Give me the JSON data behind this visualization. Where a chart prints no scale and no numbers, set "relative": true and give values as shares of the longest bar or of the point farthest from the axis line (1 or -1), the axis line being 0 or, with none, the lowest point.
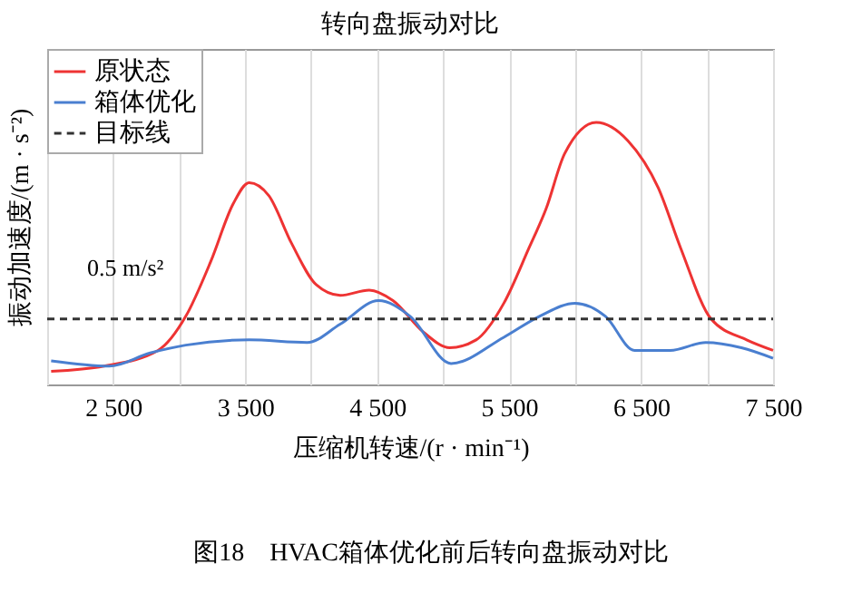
{
  "chart_data": {
    "type": "line",
    "title": "转向盘振动对比",
    "xlabel": "压缩机转速/(r · min⁻¹)",
    "ylabel": "振动加速度/(m · s⁻²)",
    "relative": true,
    "xlim": [
      2000,
      7500
    ],
    "xticks": [
      {
        "value": 2000,
        "label": null
      },
      {
        "value": 2500,
        "label": "2 500"
      },
      {
        "value": 3000,
        "label": null
      },
      {
        "value": 3500,
        "label": "3 500"
      },
      {
        "value": 4000,
        "label": null
      },
      {
        "value": 4500,
        "label": "4 500"
      },
      {
        "value": 5000,
        "label": null
      },
      {
        "value": 5500,
        "label": "5 500"
      },
      {
        "value": 6000,
        "label": null
      },
      {
        "value": 6500,
        "label": "6 500"
      },
      {
        "value": 7000,
        "label": null
      },
      {
        "value": 7500,
        "label": "7 500"
      }
    ],
    "grid": "x",
    "legend": "top left",
    "marker": "none",
    "series": [
      {
        "name": "原状态",
        "color": "#ee3333",
        "x": [
          2030,
          2430,
          2840,
          3050,
          3240,
          3410,
          3530,
          3680,
          3850,
          4040,
          4220,
          4440,
          4620,
          4850,
          5050,
          5250,
          5460,
          5650,
          5780,
          5920,
          6160,
          6400,
          6630,
          6800,
          7030,
          7300,
          7500
        ],
        "values": [
          0.05,
          0.07,
          0.13,
          0.26,
          0.47,
          0.69,
          0.77,
          0.72,
          0.54,
          0.38,
          0.34,
          0.36,
          0.32,
          0.2,
          0.14,
          0.17,
          0.31,
          0.52,
          0.67,
          0.88,
          1.0,
          0.93,
          0.75,
          0.52,
          0.25,
          0.17,
          0.13
        ]
      },
      {
        "name": "箱体优化",
        "color": "#4a7fd0",
        "x": [
          2030,
          2470,
          2780,
          3050,
          3530,
          3970,
          4220,
          4510,
          4750,
          5060,
          5460,
          5730,
          6000,
          6230,
          6450,
          6720,
          6990,
          7260,
          7500
        ],
        "values": [
          0.09,
          0.07,
          0.12,
          0.15,
          0.17,
          0.16,
          0.23,
          0.32,
          0.26,
          0.08,
          0.18,
          0.26,
          0.31,
          0.26,
          0.13,
          0.13,
          0.16,
          0.14,
          0.1
        ]
      },
      {
        "name": "目标线",
        "color": "#333333",
        "line_style": "dashed",
        "x": [
          2000,
          7500
        ],
        "values": [
          0.25,
          0.25
        ]
      }
    ],
    "annotations": [
      "0.5 m/s²",
      "图18　HVAC箱体优化前后转向盘振动对比"
    ]
  }
}
